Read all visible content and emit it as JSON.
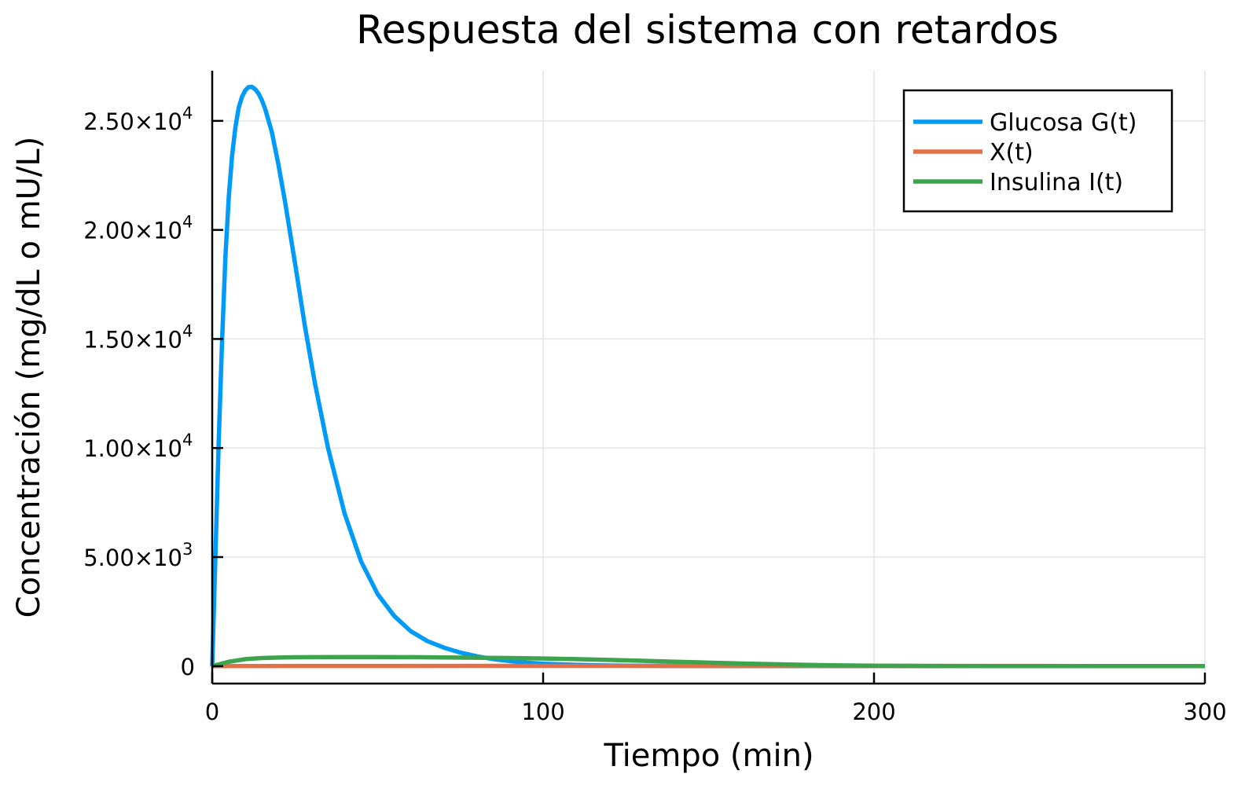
{
  "chart_data": {
    "type": "line",
    "title": "Respuesta del sistema con retardos",
    "xlabel": "Tiempo (min)",
    "ylabel": "Concentración (mg/dL o mU/L)",
    "xlim": [
      0,
      300
    ],
    "ylim": [
      -800,
      27300
    ],
    "x_ticks": [
      {
        "value": 0,
        "label": "0"
      },
      {
        "value": 100,
        "label": "100"
      },
      {
        "value": 200,
        "label": "200"
      },
      {
        "value": 300,
        "label": "300"
      }
    ],
    "y_ticks": [
      {
        "value": 0,
        "mantissa": "0",
        "exponent": ""
      },
      {
        "value": 5000,
        "mantissa": "5.00×10",
        "exponent": "3"
      },
      {
        "value": 10000,
        "mantissa": "1.00×10",
        "exponent": "4"
      },
      {
        "value": 15000,
        "mantissa": "1.50×10",
        "exponent": "4"
      },
      {
        "value": 20000,
        "mantissa": "2.00×10",
        "exponent": "4"
      },
      {
        "value": 25000,
        "mantissa": "2.50×10",
        "exponent": "4"
      }
    ],
    "grid": true,
    "legend_position": "top-right",
    "series": [
      {
        "name": "Glucosa G(t)",
        "color": "#009af9",
        "x": [
          0,
          1,
          2,
          3,
          4,
          5,
          6,
          7,
          8,
          9,
          10,
          11,
          12,
          13,
          14,
          15,
          16,
          18,
          20,
          22,
          25,
          28,
          31,
          35,
          40,
          45,
          50,
          55,
          60,
          65,
          70,
          75,
          80,
          85,
          90,
          95,
          100,
          110,
          120,
          130,
          140,
          150,
          170,
          200,
          250,
          300
        ],
        "y": [
          0,
          5200,
          10500,
          15000,
          18800,
          21500,
          23400,
          24700,
          25600,
          26100,
          26400,
          26550,
          26560,
          26450,
          26250,
          25950,
          25550,
          24500,
          23000,
          21300,
          18500,
          15600,
          13000,
          10000,
          7000,
          4800,
          3300,
          2300,
          1600,
          1150,
          850,
          620,
          450,
          320,
          230,
          160,
          110,
          60,
          30,
          15,
          8,
          4,
          1,
          0,
          0,
          0
        ]
      },
      {
        "name": "X(t)",
        "color": "#e26f46",
        "x": [
          0,
          50,
          100,
          150,
          200,
          250,
          300
        ],
        "y": [
          0,
          8,
          10,
          8,
          6,
          4,
          2
        ]
      },
      {
        "name": "Insulina I(t)",
        "color": "#3da44d",
        "x": [
          0,
          5,
          10,
          15,
          20,
          25,
          30,
          40,
          50,
          60,
          70,
          80,
          90,
          100,
          110,
          120,
          130,
          140,
          150,
          160,
          170,
          180,
          190,
          200,
          220,
          240,
          260,
          280,
          300
        ],
        "y": [
          0,
          200,
          320,
          370,
          395,
          405,
          410,
          415,
          415,
          410,
          400,
          385,
          370,
          350,
          320,
          285,
          245,
          200,
          160,
          120,
          85,
          55,
          35,
          20,
          8,
          3,
          1,
          0,
          0
        ]
      }
    ]
  }
}
